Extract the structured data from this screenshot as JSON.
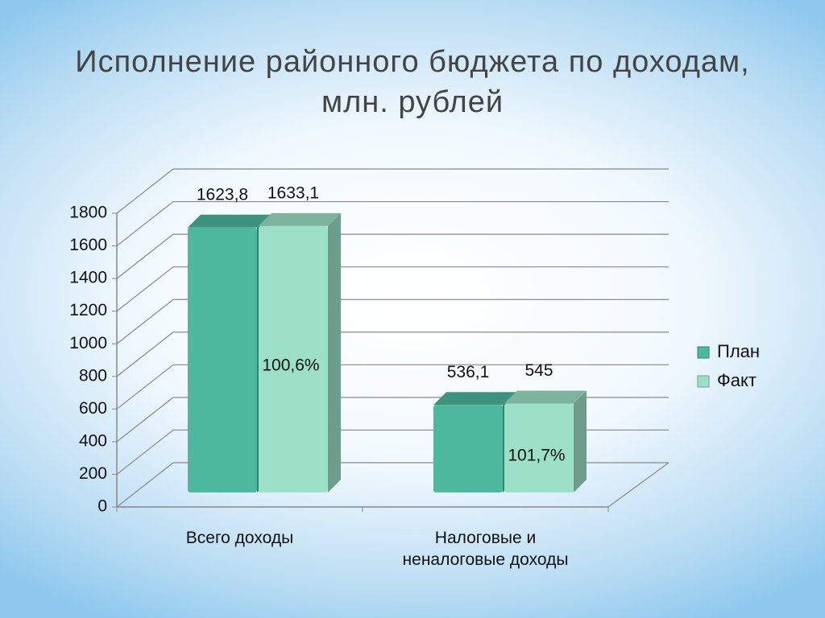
{
  "chart_data": {
    "type": "bar3d",
    "title": "Исполнение районного бюджета по доходам, млн. рублей",
    "categories": [
      "Всего доходы",
      "Налоговые и неналоговые доходы"
    ],
    "series": [
      {
        "name": "План",
        "color": "#4db89e",
        "values": [
          1623.8,
          536.1
        ],
        "value_labels": [
          "1623,8",
          "536,1"
        ]
      },
      {
        "name": "Факт",
        "color": "#9de0c8",
        "values": [
          1633.1,
          545
        ],
        "value_labels": [
          "1633,1",
          "545"
        ]
      }
    ],
    "annotations": [
      "100,6%",
      "101,7%"
    ],
    "ylim": [
      0,
      1800
    ],
    "yticks": [
      0,
      200,
      400,
      600,
      800,
      1000,
      1200,
      1400,
      1600,
      1800
    ],
    "grid": true,
    "legend": "right"
  }
}
